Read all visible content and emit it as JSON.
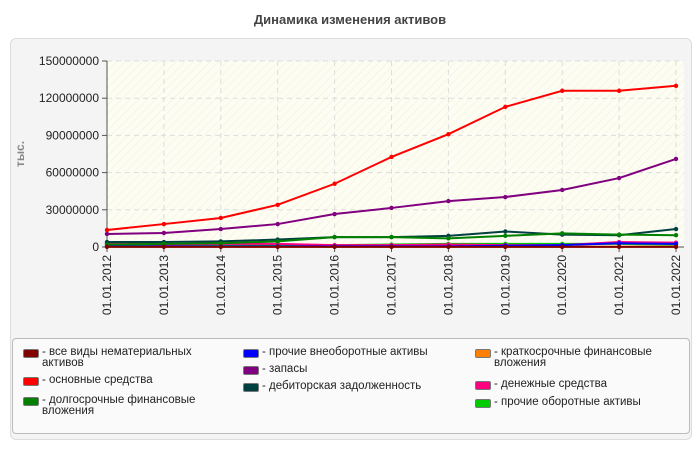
{
  "chart_data": {
    "type": "line",
    "title": "Динамика изменения активов",
    "ylabel": "тыс.",
    "xlabel": "",
    "ylim": [
      0,
      150000000
    ],
    "yticks": [
      "0",
      "30000000",
      "60000000",
      "90000000",
      "120000000",
      "150000000"
    ],
    "categories": [
      "01.01.2012",
      "01.01.2013",
      "01.01.2014",
      "01.01.2015",
      "01.01.2016",
      "01.01.2017",
      "01.01.2018",
      "01.01.2019",
      "01.01.2020",
      "01.01.2021",
      "01.01.2022"
    ],
    "grid": true,
    "legend_placement": "bottom",
    "series": [
      {
        "name": "- все виды нематериальных активов",
        "color": "#800000",
        "values": [
          100000,
          100000,
          100000,
          100000,
          100000,
          100000,
          100000,
          100000,
          100000,
          100000,
          100000
        ]
      },
      {
        "name": "- основные средства",
        "color": "#ff0000",
        "values": [
          13700000,
          18500000,
          23400000,
          34000000,
          51000000,
          72600000,
          91000000,
          113000000,
          126000000,
          126000000,
          130000000
        ]
      },
      {
        "name": "- долгосрочные финансовые вложения",
        "color": "#008000",
        "values": [
          2000000,
          2500000,
          3000000,
          4500000,
          8000000,
          8000000,
          7000000,
          9000000,
          11000000,
          10000000,
          9500000
        ]
      },
      {
        "name": "- прочие внеоборотные активы",
        "color": "#0000ff",
        "values": [
          500000,
          500000,
          500000,
          500000,
          500000,
          500000,
          500000,
          1000000,
          1500000,
          3000000,
          2500000
        ]
      },
      {
        "name": "- запасы",
        "color": "#800080",
        "values": [
          10500000,
          11300000,
          14500000,
          18500000,
          26600000,
          31500000,
          37000000,
          40300000,
          46000000,
          55600000,
          71000000
        ]
      },
      {
        "name": "- дебиторская задолженность",
        "color": "#004040",
        "values": [
          4000000,
          4000000,
          4500000,
          6000000,
          8000000,
          8000000,
          9000000,
          12500000,
          10000000,
          9500000,
          14500000
        ]
      },
      {
        "name": "- краткосрочные финансовые вложения",
        "color": "#ff8000",
        "values": [
          300000,
          300000,
          300000,
          300000,
          300000,
          300000,
          300000,
          300000,
          300000,
          300000,
          300000
        ]
      },
      {
        "name": "- денежные средства",
        "color": "#ff0080",
        "values": [
          3000000,
          2000000,
          2500000,
          2500000,
          1500000,
          1500000,
          2000000,
          1500000,
          1500000,
          4000000,
          3500000
        ]
      },
      {
        "name": "- прочие оборотные активы",
        "color": "#00cc00",
        "values": [
          1000000,
          1000000,
          1000000,
          1500000,
          1500000,
          2000000,
          2500000,
          2500000,
          2500000,
          2500000,
          2000000
        ]
      }
    ]
  }
}
